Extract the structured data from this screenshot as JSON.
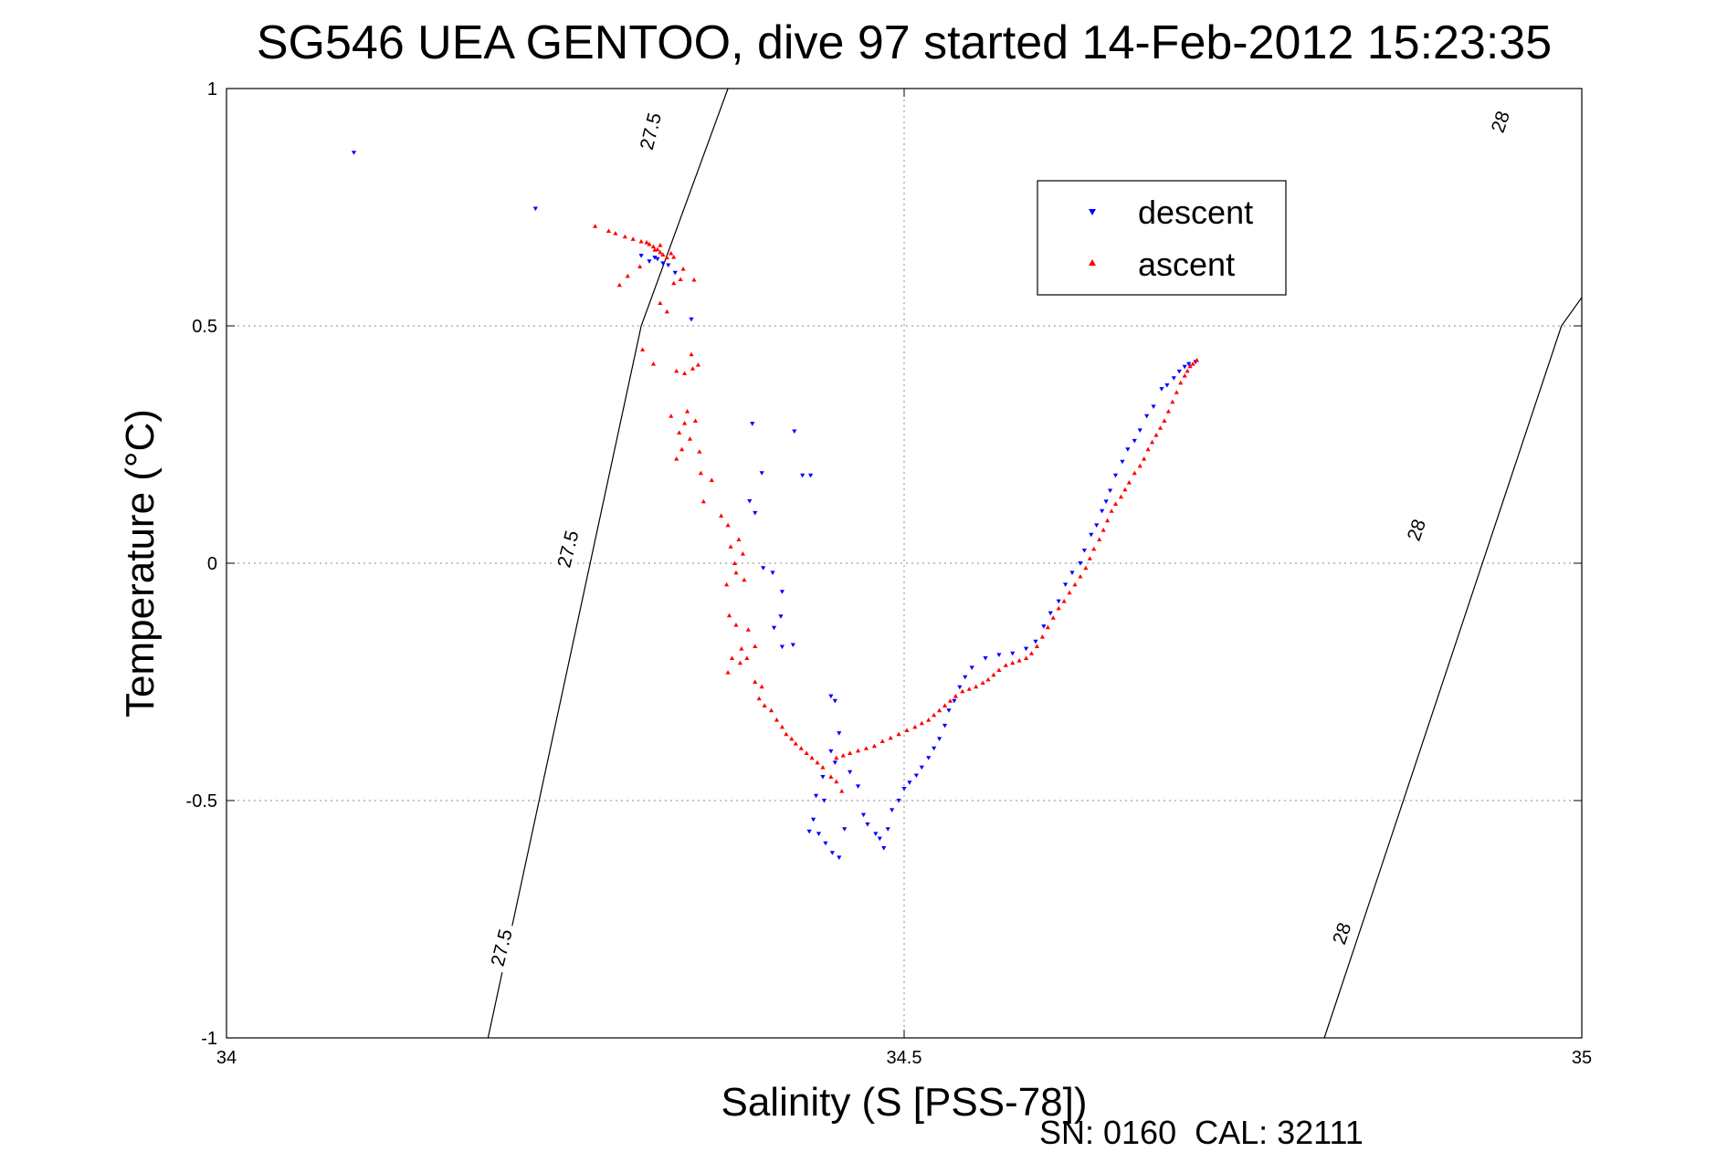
{
  "chart_data": {
    "type": "scatter",
    "title": "SG546 UEA GENTOO, dive 97 started 14-Feb-2012 15:23:35",
    "xlabel": "Salinity (S [PSS-78])",
    "ylabel": "Temperature (°C)",
    "xlim": [
      34,
      35
    ],
    "ylim": [
      -1,
      1
    ],
    "xticks": [
      34,
      34.5,
      35
    ],
    "xtick_labels": [
      "34",
      "34.5",
      "35"
    ],
    "yticks": [
      1,
      0.5,
      0,
      -0.5,
      -1
    ],
    "ytick_labels": [
      "1",
      "0.5",
      "0",
      "-0.5",
      "-1"
    ],
    "grid": true,
    "legend_position": "upper-center-right",
    "footer": "SN: 0160  CAL: 32111",
    "colors": {
      "descent": "#0000ff",
      "ascent": "#ff0000",
      "axes": "#000000",
      "grid": "#888888"
    },
    "density_contours": [
      {
        "label": "27.5",
        "points": [
          [
            34.193,
            -1.0
          ],
          [
            34.306,
            0.5
          ],
          [
            34.37,
            1.0
          ]
        ],
        "label_positions": [
          [
            34.203,
            -0.81
          ],
          [
            34.252,
            0.03
          ],
          [
            34.313,
            0.91
          ]
        ]
      },
      {
        "label": "28",
        "points": [
          [
            34.81,
            -1.0
          ],
          [
            34.985,
            0.5
          ],
          [
            35.0,
            0.56
          ]
        ],
        "label_positions": [
          [
            34.823,
            -0.78
          ],
          [
            34.878,
            0.07
          ],
          [
            34.94,
            0.93
          ]
        ]
      }
    ],
    "series": [
      {
        "name": "descent",
        "marker": "triangle-down",
        "color": "#0000ff",
        "points": [
          [
            34.094,
            0.865
          ],
          [
            34.228,
            0.747
          ],
          [
            34.306,
            0.648
          ],
          [
            34.312,
            0.636
          ],
          [
            34.318,
            0.641
          ],
          [
            34.322,
            0.632
          ],
          [
            34.326,
            0.628
          ],
          [
            34.316,
            0.644
          ],
          [
            34.331,
            0.612
          ],
          [
            34.343,
            0.514
          ],
          [
            34.388,
            0.294
          ],
          [
            34.419,
            0.278
          ],
          [
            34.395,
            0.19
          ],
          [
            34.425,
            0.185
          ],
          [
            34.431,
            0.185
          ],
          [
            34.386,
            0.131
          ],
          [
            34.39,
            0.106
          ],
          [
            34.396,
            -0.01
          ],
          [
            34.403,
            -0.02
          ],
          [
            34.41,
            -0.06
          ],
          [
            34.409,
            -0.112
          ],
          [
            34.404,
            -0.136
          ],
          [
            34.418,
            -0.172
          ],
          [
            34.41,
            -0.176
          ],
          [
            34.446,
            -0.28
          ],
          [
            34.449,
            -0.29
          ],
          [
            34.452,
            -0.358
          ],
          [
            34.446,
            -0.396
          ],
          [
            34.449,
            -0.42
          ],
          [
            34.44,
            -0.45
          ],
          [
            34.435,
            -0.49
          ],
          [
            34.441,
            -0.5
          ],
          [
            34.433,
            -0.54
          ],
          [
            34.43,
            -0.565
          ],
          [
            34.437,
            -0.57
          ],
          [
            34.442,
            -0.59
          ],
          [
            34.447,
            -0.61
          ],
          [
            34.452,
            -0.62
          ],
          [
            34.456,
            -0.56
          ],
          [
            34.46,
            -0.44
          ],
          [
            34.466,
            -0.47
          ],
          [
            34.47,
            -0.53
          ],
          [
            34.473,
            -0.55
          ],
          [
            34.479,
            -0.57
          ],
          [
            34.482,
            -0.58
          ],
          [
            34.485,
            -0.6
          ],
          [
            34.488,
            -0.56
          ],
          [
            34.491,
            -0.52
          ],
          [
            34.496,
            -0.5
          ],
          [
            34.5,
            -0.475
          ],
          [
            34.504,
            -0.462
          ],
          [
            34.509,
            -0.447
          ],
          [
            34.513,
            -0.43
          ],
          [
            34.518,
            -0.41
          ],
          [
            34.522,
            -0.39
          ],
          [
            34.526,
            -0.37
          ],
          [
            34.53,
            -0.342
          ],
          [
            34.533,
            -0.31
          ],
          [
            34.537,
            -0.29
          ],
          [
            34.541,
            -0.261
          ],
          [
            34.545,
            -0.24
          ],
          [
            34.55,
            -0.22
          ],
          [
            34.56,
            -0.2
          ],
          [
            34.57,
            -0.193
          ],
          [
            34.58,
            -0.19
          ],
          [
            34.59,
            -0.18
          ],
          [
            34.597,
            -0.165
          ],
          [
            34.603,
            -0.133
          ],
          [
            34.608,
            -0.105
          ],
          [
            34.614,
            -0.08
          ],
          [
            34.619,
            -0.045
          ],
          [
            34.624,
            -0.02
          ],
          [
            34.63,
            0.0
          ],
          [
            34.633,
            0.027
          ],
          [
            34.638,
            0.06
          ],
          [
            34.642,
            0.08
          ],
          [
            34.646,
            0.11
          ],
          [
            34.649,
            0.13
          ],
          [
            34.652,
            0.153
          ],
          [
            34.656,
            0.185
          ],
          [
            34.661,
            0.214
          ],
          [
            34.665,
            0.24
          ],
          [
            34.67,
            0.258
          ],
          [
            34.674,
            0.28
          ],
          [
            34.679,
            0.31
          ],
          [
            34.684,
            0.33
          ],
          [
            34.69,
            0.367
          ],
          [
            34.694,
            0.375
          ],
          [
            34.699,
            0.39
          ],
          [
            34.703,
            0.404
          ],
          [
            34.707,
            0.414
          ],
          [
            34.71,
            0.42
          ],
          [
            34.715,
            0.424
          ]
        ]
      },
      {
        "name": "ascent",
        "marker": "triangle-up",
        "color": "#ff0000",
        "points": [
          [
            34.272,
            0.71
          ],
          [
            34.282,
            0.7
          ],
          [
            34.287,
            0.695
          ],
          [
            34.294,
            0.688
          ],
          [
            34.3,
            0.683
          ],
          [
            34.306,
            0.678
          ],
          [
            34.31,
            0.676
          ],
          [
            34.312,
            0.672
          ],
          [
            34.315,
            0.667
          ],
          [
            34.318,
            0.661
          ],
          [
            34.32,
            0.655
          ],
          [
            34.322,
            0.65
          ],
          [
            34.325,
            0.644
          ],
          [
            34.316,
            0.66
          ],
          [
            34.32,
            0.67
          ],
          [
            34.328,
            0.653
          ],
          [
            34.33,
            0.645
          ],
          [
            34.305,
            0.625
          ],
          [
            34.296,
            0.605
          ],
          [
            34.29,
            0.586
          ],
          [
            34.337,
            0.62
          ],
          [
            34.335,
            0.598
          ],
          [
            34.33,
            0.59
          ],
          [
            34.345,
            0.597
          ],
          [
            34.32,
            0.548
          ],
          [
            34.325,
            0.53
          ],
          [
            34.307,
            0.45
          ],
          [
            34.343,
            0.44
          ],
          [
            34.315,
            0.42
          ],
          [
            34.348,
            0.418
          ],
          [
            34.332,
            0.405
          ],
          [
            34.344,
            0.41
          ],
          [
            34.338,
            0.4
          ],
          [
            34.34,
            0.32
          ],
          [
            34.346,
            0.3
          ],
          [
            34.328,
            0.31
          ],
          [
            34.338,
            0.295
          ],
          [
            34.334,
            0.275
          ],
          [
            34.342,
            0.262
          ],
          [
            34.349,
            0.235
          ],
          [
            34.332,
            0.22
          ],
          [
            34.336,
            0.24
          ],
          [
            34.35,
            0.19
          ],
          [
            34.358,
            0.175
          ],
          [
            34.352,
            0.13
          ],
          [
            34.365,
            0.1
          ],
          [
            34.37,
            0.08
          ],
          [
            34.372,
            0.035
          ],
          [
            34.378,
            0.05
          ],
          [
            34.381,
            0.02
          ],
          [
            34.375,
            0.0
          ],
          [
            34.376,
            -0.02
          ],
          [
            34.382,
            -0.035
          ],
          [
            34.369,
            -0.045
          ],
          [
            34.371,
            -0.11
          ],
          [
            34.376,
            -0.13
          ],
          [
            34.385,
            -0.14
          ],
          [
            34.38,
            -0.18
          ],
          [
            34.39,
            -0.175
          ],
          [
            34.373,
            -0.2
          ],
          [
            34.384,
            -0.2
          ],
          [
            34.379,
            -0.21
          ],
          [
            34.37,
            -0.23
          ],
          [
            34.39,
            -0.25
          ],
          [
            34.395,
            -0.26
          ],
          [
            34.393,
            -0.285
          ],
          [
            34.397,
            -0.3
          ],
          [
            34.402,
            -0.31
          ],
          [
            34.406,
            -0.33
          ],
          [
            34.41,
            -0.345
          ],
          [
            34.413,
            -0.36
          ],
          [
            34.417,
            -0.37
          ],
          [
            34.42,
            -0.38
          ],
          [
            34.424,
            -0.39
          ],
          [
            34.428,
            -0.4
          ],
          [
            34.432,
            -0.41
          ],
          [
            34.436,
            -0.42
          ],
          [
            34.44,
            -0.43
          ],
          [
            34.446,
            -0.45
          ],
          [
            34.45,
            -0.46
          ],
          [
            34.454,
            -0.48
          ],
          [
            34.45,
            -0.41
          ],
          [
            34.455,
            -0.405
          ],
          [
            34.46,
            -0.4
          ],
          [
            34.466,
            -0.395
          ],
          [
            34.472,
            -0.39
          ],
          [
            34.478,
            -0.385
          ],
          [
            34.484,
            -0.375
          ],
          [
            34.49,
            -0.368
          ],
          [
            34.496,
            -0.36
          ],
          [
            34.502,
            -0.352
          ],
          [
            34.508,
            -0.345
          ],
          [
            34.513,
            -0.337
          ],
          [
            34.518,
            -0.33
          ],
          [
            34.522,
            -0.32
          ],
          [
            34.526,
            -0.31
          ],
          [
            34.53,
            -0.3
          ],
          [
            34.534,
            -0.29
          ],
          [
            34.538,
            -0.28
          ],
          [
            34.543,
            -0.27
          ],
          [
            34.548,
            -0.265
          ],
          [
            34.553,
            -0.26
          ],
          [
            34.558,
            -0.252
          ],
          [
            34.562,
            -0.245
          ],
          [
            34.566,
            -0.235
          ],
          [
            34.57,
            -0.225
          ],
          [
            34.575,
            -0.215
          ],
          [
            34.58,
            -0.21
          ],
          [
            34.585,
            -0.205
          ],
          [
            34.59,
            -0.2
          ],
          [
            34.594,
            -0.19
          ],
          [
            34.598,
            -0.175
          ],
          [
            34.602,
            -0.155
          ],
          [
            34.606,
            -0.135
          ],
          [
            34.61,
            -0.115
          ],
          [
            34.614,
            -0.095
          ],
          [
            34.618,
            -0.08
          ],
          [
            34.622,
            -0.062
          ],
          [
            34.626,
            -0.045
          ],
          [
            34.63,
            -0.028
          ],
          [
            34.634,
            -0.01
          ],
          [
            34.637,
            0.01
          ],
          [
            34.64,
            0.03
          ],
          [
            34.644,
            0.05
          ],
          [
            34.647,
            0.07
          ],
          [
            34.65,
            0.09
          ],
          [
            34.653,
            0.11
          ],
          [
            34.656,
            0.125
          ],
          [
            34.66,
            0.14
          ],
          [
            34.663,
            0.155
          ],
          [
            34.666,
            0.17
          ],
          [
            34.67,
            0.19
          ],
          [
            34.674,
            0.205
          ],
          [
            34.677,
            0.22
          ],
          [
            34.68,
            0.24
          ],
          [
            34.683,
            0.255
          ],
          [
            34.686,
            0.27
          ],
          [
            34.689,
            0.285
          ],
          [
            34.692,
            0.3
          ],
          [
            34.695,
            0.32
          ],
          [
            34.698,
            0.34
          ],
          [
            34.701,
            0.36
          ],
          [
            34.704,
            0.38
          ],
          [
            34.707,
            0.395
          ],
          [
            34.709,
            0.405
          ],
          [
            34.711,
            0.415
          ],
          [
            34.713,
            0.42
          ],
          [
            34.716,
            0.428
          ]
        ]
      }
    ]
  }
}
